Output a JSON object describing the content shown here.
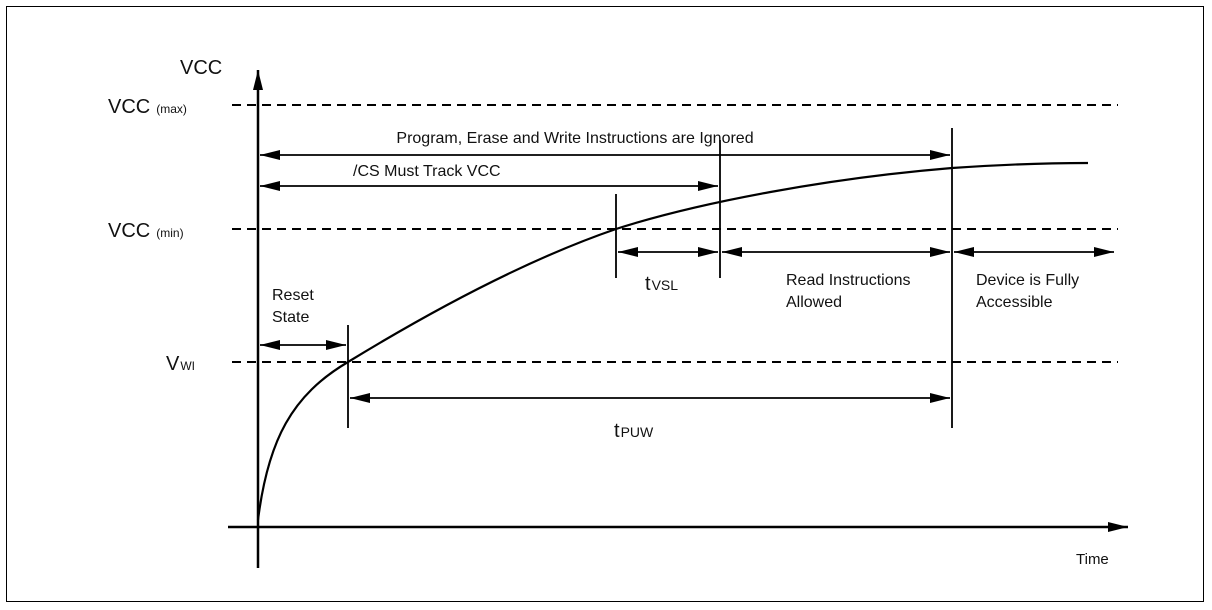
{
  "axis": {
    "y_label": "VCC",
    "x_label": "Time"
  },
  "levels": {
    "vcc_max": {
      "main": "VCC",
      "sub": "(max)"
    },
    "vcc_min": {
      "main": "VCC",
      "sub": "(min)"
    },
    "vwi": {
      "main": "V",
      "sub": "WI"
    }
  },
  "spans": {
    "ignored": "Program, Erase and Write Instructions are Ignored",
    "cs_track": "/CS Must Track VCC",
    "tvsl": {
      "main": "t",
      "sub": "VSL"
    },
    "read_allowed": {
      "line1": "Read Instructions",
      "line2": "Allowed"
    },
    "fully_accessible": {
      "line1": "Device is Fully",
      "line2": "Accessible"
    },
    "reset_state": {
      "line1": "Reset",
      "line2": "State"
    },
    "tpuw": {
      "main": "t",
      "sub": "PUW"
    }
  },
  "colors": {
    "ink": "#000000",
    "background": "#ffffff"
  }
}
